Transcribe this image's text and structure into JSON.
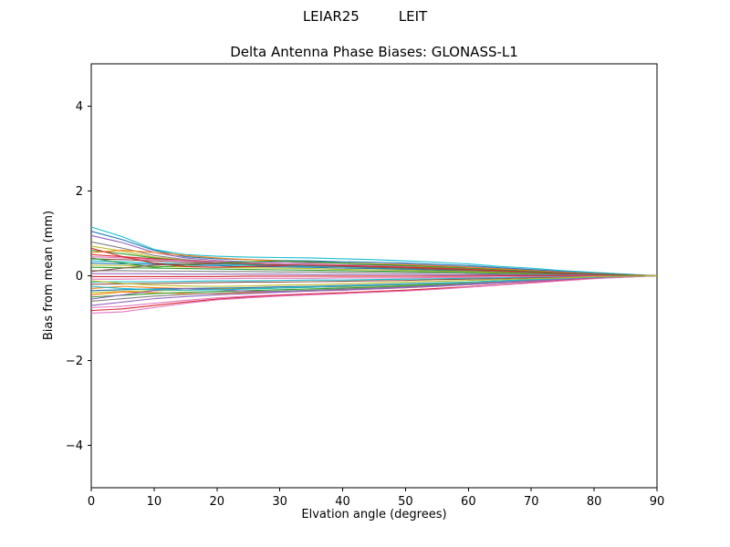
{
  "chart_data": {
    "type": "line",
    "suptitle": "LEIAR25         LEIT",
    "title": "Delta Antenna Phase Biases: GLONASS-L1",
    "xlabel": "Elvation angle (degrees)",
    "ylabel": "Bias from mean (mm)",
    "xlim": [
      0,
      90
    ],
    "ylim": [
      -5,
      5
    ],
    "x_ticks": [
      0,
      10,
      20,
      30,
      40,
      50,
      60,
      70,
      80,
      90
    ],
    "y_ticks": [
      -4,
      -2,
      0,
      2,
      4
    ],
    "grid": false,
    "legend": "none",
    "x": [
      0,
      5,
      10,
      15,
      20,
      25,
      30,
      35,
      40,
      45,
      50,
      55,
      60,
      65,
      70,
      75,
      80,
      85,
      90
    ],
    "series": [
      {
        "name": "s01",
        "color": "#17becf",
        "values": [
          1.15,
          0.92,
          0.62,
          0.5,
          0.46,
          0.44,
          0.43,
          0.42,
          0.4,
          0.38,
          0.35,
          0.32,
          0.28,
          0.22,
          0.18,
          0.12,
          0.08,
          0.04,
          0.0
        ]
      },
      {
        "name": "s02",
        "color": "#1f77b4",
        "values": [
          1.05,
          0.85,
          0.6,
          0.45,
          0.4,
          0.38,
          0.36,
          0.35,
          0.33,
          0.32,
          0.3,
          0.27,
          0.24,
          0.19,
          0.15,
          0.1,
          0.06,
          0.03,
          0.0
        ]
      },
      {
        "name": "s03",
        "color": "#9467bd",
        "values": [
          0.95,
          0.78,
          0.55,
          0.42,
          0.36,
          0.33,
          0.32,
          0.3,
          0.3,
          0.28,
          0.27,
          0.24,
          0.21,
          0.17,
          0.13,
          0.09,
          0.05,
          0.02,
          0.0
        ]
      },
      {
        "name": "s04",
        "color": "#7f7f7f",
        "values": [
          0.8,
          0.65,
          0.48,
          0.38,
          0.33,
          0.3,
          0.28,
          0.27,
          0.26,
          0.25,
          0.23,
          0.21,
          0.18,
          0.15,
          0.11,
          0.08,
          0.04,
          0.02,
          0.0
        ]
      },
      {
        "name": "s05",
        "color": "#bcbd22",
        "values": [
          0.7,
          0.58,
          0.44,
          0.36,
          0.31,
          0.28,
          0.26,
          0.25,
          0.24,
          0.22,
          0.21,
          0.19,
          0.16,
          0.13,
          0.1,
          0.07,
          0.04,
          0.02,
          0.0
        ]
      },
      {
        "name": "s06",
        "color": "#2ca02c",
        "values": [
          0.6,
          0.52,
          0.42,
          0.35,
          0.3,
          0.27,
          0.25,
          0.23,
          0.22,
          0.21,
          0.19,
          0.17,
          0.15,
          0.12,
          0.09,
          0.06,
          0.03,
          0.01,
          0.0
        ]
      },
      {
        "name": "s07",
        "color": "#ff7f0e",
        "values": [
          0.55,
          0.6,
          0.55,
          0.48,
          0.42,
          0.38,
          0.35,
          0.32,
          0.3,
          0.28,
          0.26,
          0.23,
          0.2,
          0.16,
          0.12,
          0.08,
          0.05,
          0.02,
          0.0
        ]
      },
      {
        "name": "s08",
        "color": "#d62728",
        "values": [
          0.5,
          0.45,
          0.4,
          0.36,
          0.33,
          0.3,
          0.28,
          0.26,
          0.24,
          0.22,
          0.2,
          0.18,
          0.15,
          0.12,
          0.09,
          0.06,
          0.03,
          0.01,
          0.0
        ]
      },
      {
        "name": "s09",
        "color": "#e377c2",
        "values": [
          0.45,
          0.42,
          0.38,
          0.35,
          0.32,
          0.3,
          0.28,
          0.27,
          0.25,
          0.23,
          0.21,
          0.18,
          0.16,
          0.13,
          0.1,
          0.07,
          0.04,
          0.02,
          0.0
        ]
      },
      {
        "name": "s10",
        "color": "#8c564b",
        "values": [
          0.4,
          0.38,
          0.35,
          0.32,
          0.3,
          0.28,
          0.26,
          0.24,
          0.22,
          0.2,
          0.18,
          0.16,
          0.14,
          0.11,
          0.08,
          0.06,
          0.03,
          0.01,
          0.0
        ]
      },
      {
        "name": "s11",
        "color": "#17becf",
        "values": [
          0.35,
          0.33,
          0.3,
          0.28,
          0.27,
          0.25,
          0.24,
          0.22,
          0.21,
          0.19,
          0.17,
          0.15,
          0.13,
          0.1,
          0.08,
          0.05,
          0.03,
          0.01,
          0.0
        ]
      },
      {
        "name": "s12",
        "color": "#1f77b4",
        "values": [
          0.3,
          0.28,
          0.27,
          0.25,
          0.24,
          0.22,
          0.21,
          0.2,
          0.18,
          0.17,
          0.15,
          0.13,
          0.11,
          0.09,
          0.07,
          0.05,
          0.02,
          0.01,
          0.0
        ]
      },
      {
        "name": "s13",
        "color": "#bcbd22",
        "values": [
          0.25,
          0.24,
          0.22,
          0.21,
          0.2,
          0.19,
          0.18,
          0.17,
          0.15,
          0.14,
          0.13,
          0.11,
          0.1,
          0.08,
          0.06,
          0.04,
          0.02,
          0.01,
          0.0
        ]
      },
      {
        "name": "s14",
        "color": "#2ca02c",
        "values": [
          0.2,
          0.19,
          0.18,
          0.17,
          0.16,
          0.15,
          0.14,
          0.13,
          0.12,
          0.11,
          0.1,
          0.09,
          0.08,
          0.06,
          0.05,
          0.03,
          0.02,
          0.01,
          0.0
        ]
      },
      {
        "name": "s15",
        "color": "#7f7f7f",
        "values": [
          0.12,
          0.12,
          0.11,
          0.11,
          0.1,
          0.1,
          0.09,
          0.09,
          0.08,
          0.08,
          0.07,
          0.06,
          0.05,
          0.04,
          0.03,
          0.02,
          0.01,
          0.0,
          0.0
        ]
      },
      {
        "name": "s16",
        "color": "#9467bd",
        "values": [
          0.05,
          0.05,
          0.05,
          0.04,
          0.04,
          0.04,
          0.04,
          0.03,
          0.03,
          0.03,
          0.03,
          0.02,
          0.02,
          0.02,
          0.01,
          0.01,
          0.01,
          0.0,
          0.0
        ]
      },
      {
        "name": "s17",
        "color": "#d62728",
        "values": [
          -0.02,
          -0.02,
          -0.02,
          -0.02,
          -0.02,
          -0.01,
          -0.01,
          -0.01,
          -0.01,
          -0.01,
          -0.01,
          -0.01,
          -0.01,
          0.0,
          0.0,
          0.0,
          0.0,
          0.0,
          0.0
        ]
      },
      {
        "name": "s18",
        "color": "#e377c2",
        "values": [
          -0.08,
          -0.08,
          -0.07,
          -0.07,
          -0.07,
          -0.06,
          -0.06,
          -0.06,
          -0.05,
          -0.05,
          -0.05,
          -0.04,
          -0.04,
          -0.03,
          -0.02,
          -0.02,
          -0.01,
          0.0,
          0.0
        ]
      },
      {
        "name": "s19",
        "color": "#17becf",
        "values": [
          -0.15,
          -0.14,
          -0.14,
          -0.13,
          -0.12,
          -0.12,
          -0.11,
          -0.1,
          -0.1,
          -0.09,
          -0.08,
          -0.07,
          -0.06,
          -0.05,
          -0.04,
          -0.03,
          -0.02,
          -0.01,
          0.0
        ]
      },
      {
        "name": "s20",
        "color": "#8c564b",
        "values": [
          -0.2,
          -0.19,
          -0.18,
          -0.17,
          -0.16,
          -0.15,
          -0.15,
          -0.14,
          -0.13,
          -0.12,
          -0.11,
          -0.09,
          -0.08,
          -0.07,
          -0.05,
          -0.04,
          -0.02,
          -0.01,
          0.0
        ]
      },
      {
        "name": "s21",
        "color": "#ff7f0e",
        "values": [
          -0.3,
          -0.25,
          -0.28,
          -0.3,
          -0.31,
          -0.3,
          -0.29,
          -0.27,
          -0.26,
          -0.24,
          -0.22,
          -0.2,
          -0.17,
          -0.14,
          -0.11,
          -0.07,
          -0.04,
          -0.02,
          0.0
        ]
      },
      {
        "name": "s22",
        "color": "#1f77b4",
        "values": [
          -0.35,
          -0.33,
          -0.31,
          -0.3,
          -0.29,
          -0.28,
          -0.26,
          -0.25,
          -0.23,
          -0.21,
          -0.19,
          -0.17,
          -0.15,
          -0.12,
          -0.09,
          -0.06,
          -0.03,
          -0.01,
          0.0
        ]
      },
      {
        "name": "s23",
        "color": "#bcbd22",
        "values": [
          -0.4,
          -0.37,
          -0.35,
          -0.34,
          -0.32,
          -0.31,
          -0.29,
          -0.27,
          -0.25,
          -0.23,
          -0.21,
          -0.19,
          -0.16,
          -0.13,
          -0.1,
          -0.07,
          -0.04,
          -0.02,
          0.0
        ]
      },
      {
        "name": "s24",
        "color": "#ff7f0e",
        "values": [
          -0.45,
          -0.38,
          -0.4,
          -0.42,
          -0.42,
          -0.4,
          -0.38,
          -0.36,
          -0.34,
          -0.31,
          -0.28,
          -0.25,
          -0.21,
          -0.17,
          -0.13,
          -0.09,
          -0.05,
          -0.02,
          0.0
        ]
      },
      {
        "name": "s25",
        "color": "#2ca02c",
        "values": [
          -0.5,
          -0.46,
          -0.42,
          -0.39,
          -0.37,
          -0.35,
          -0.33,
          -0.31,
          -0.29,
          -0.27,
          -0.24,
          -0.21,
          -0.18,
          -0.15,
          -0.11,
          -0.08,
          -0.04,
          -0.02,
          0.0
        ]
      },
      {
        "name": "s26",
        "color": "#7f7f7f",
        "values": [
          -0.6,
          -0.54,
          -0.48,
          -0.44,
          -0.41,
          -0.38,
          -0.36,
          -0.34,
          -0.31,
          -0.29,
          -0.26,
          -0.23,
          -0.2,
          -0.16,
          -0.12,
          -0.08,
          -0.05,
          -0.02,
          0.0
        ]
      },
      {
        "name": "s27",
        "color": "#9467bd",
        "values": [
          -0.7,
          -0.62,
          -0.54,
          -0.49,
          -0.45,
          -0.42,
          -0.39,
          -0.36,
          -0.34,
          -0.31,
          -0.28,
          -0.25,
          -0.21,
          -0.17,
          -0.13,
          -0.09,
          -0.05,
          -0.02,
          0.0
        ]
      },
      {
        "name": "s28",
        "color": "#e377c2",
        "values": [
          -0.75,
          -0.72,
          -0.65,
          -0.58,
          -0.52,
          -0.48,
          -0.45,
          -0.42,
          -0.4,
          -0.37,
          -0.34,
          -0.3,
          -0.26,
          -0.21,
          -0.16,
          -0.11,
          -0.06,
          -0.03,
          0.0
        ]
      },
      {
        "name": "s29",
        "color": "#d62728",
        "values": [
          -0.82,
          -0.78,
          -0.7,
          -0.62,
          -0.55,
          -0.5,
          -0.46,
          -0.43,
          -0.4,
          -0.37,
          -0.34,
          -0.3,
          -0.26,
          -0.21,
          -0.16,
          -0.11,
          -0.06,
          -0.03,
          0.0
        ]
      },
      {
        "name": "s30",
        "color": "#e377c2",
        "values": [
          -0.88,
          -0.85,
          -0.75,
          -0.65,
          -0.57,
          -0.52,
          -0.48,
          -0.45,
          -0.42,
          -0.39,
          -0.36,
          -0.32,
          -0.27,
          -0.22,
          -0.17,
          -0.12,
          -0.07,
          -0.03,
          0.0
        ]
      },
      {
        "name": "s31",
        "color": "#2ca02c",
        "values": [
          0.42,
          0.3,
          0.2,
          0.25,
          0.3,
          0.33,
          0.35,
          0.33,
          0.3,
          0.27,
          0.24,
          0.21,
          0.18,
          0.14,
          0.11,
          0.07,
          0.04,
          0.02,
          0.0
        ]
      },
      {
        "name": "s32",
        "color": "#9467bd",
        "values": [
          -0.55,
          -0.45,
          -0.35,
          -0.3,
          -0.33,
          -0.36,
          -0.38,
          -0.36,
          -0.33,
          -0.3,
          -0.27,
          -0.23,
          -0.19,
          -0.15,
          -0.12,
          -0.08,
          -0.04,
          -0.02,
          0.0
        ]
      },
      {
        "name": "s33",
        "color": "#d62728",
        "values": [
          0.65,
          0.45,
          0.3,
          0.22,
          0.2,
          0.22,
          0.24,
          0.25,
          0.24,
          0.22,
          0.2,
          0.18,
          0.15,
          0.12,
          0.09,
          0.06,
          0.03,
          0.01,
          0.0
        ]
      },
      {
        "name": "s34",
        "color": "#17becf",
        "values": [
          -0.25,
          -0.3,
          -0.33,
          -0.34,
          -0.33,
          -0.31,
          -0.29,
          -0.27,
          -0.25,
          -0.23,
          -0.2,
          -0.18,
          -0.15,
          -0.12,
          -0.09,
          -0.06,
          -0.03,
          -0.01,
          0.0
        ]
      },
      {
        "name": "s35",
        "color": "#8c564b",
        "values": [
          0.1,
          0.18,
          0.25,
          0.28,
          0.29,
          0.28,
          0.26,
          0.24,
          0.22,
          0.2,
          0.18,
          0.15,
          0.13,
          0.1,
          0.08,
          0.05,
          0.03,
          0.01,
          0.0
        ]
      },
      {
        "name": "s36",
        "color": "#bcbd22",
        "values": [
          -0.12,
          -0.18,
          -0.22,
          -0.24,
          -0.25,
          -0.24,
          -0.22,
          -0.21,
          -0.19,
          -0.17,
          -0.15,
          -0.13,
          -0.11,
          -0.09,
          -0.07,
          -0.05,
          -0.02,
          -0.01,
          0.0
        ]
      }
    ]
  }
}
